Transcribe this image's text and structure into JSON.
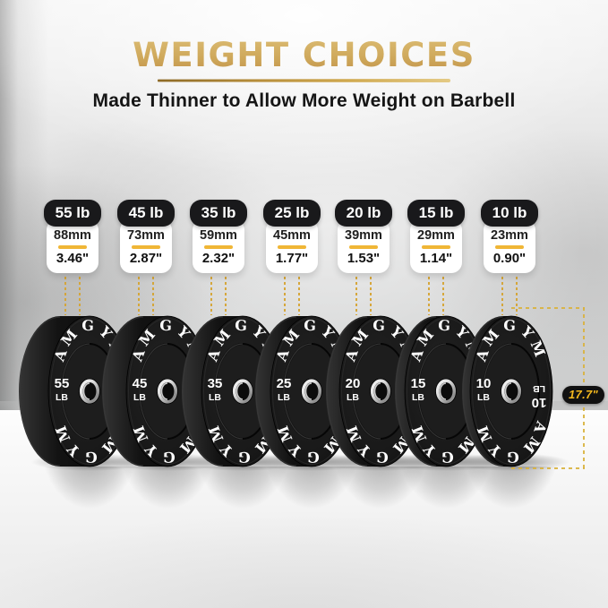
{
  "header": {
    "title": "WEIGHT CHOICES",
    "subtitle": "Made Thinner to Allow More Weight on Barbell"
  },
  "brand_text": "AMGYM",
  "diameter_annotation": {
    "label": "17.7\""
  },
  "colors": {
    "title_gold": "#cfa95c",
    "accent_gold": "#d5a433",
    "divider_gold": "#f0b636",
    "badge_text_gold": "#f5b91e",
    "card_pill_bg": "#19191b",
    "plate_black": "#171717"
  },
  "plates": [
    {
      "weight_card": "55 lb",
      "thickness_mm": "88mm",
      "thickness_in": "3.46\"",
      "face_weight": "55",
      "face_unit": "LB"
    },
    {
      "weight_card": "45 lb",
      "thickness_mm": "73mm",
      "thickness_in": "2.87\"",
      "face_weight": "45",
      "face_unit": "LB"
    },
    {
      "weight_card": "35 lb",
      "thickness_mm": "59mm",
      "thickness_in": "2.32\"",
      "face_weight": "35",
      "face_unit": "LB"
    },
    {
      "weight_card": "25 lb",
      "thickness_mm": "45mm",
      "thickness_in": "1.77\"",
      "face_weight": "25",
      "face_unit": "LB"
    },
    {
      "weight_card": "20 lb",
      "thickness_mm": "39mm",
      "thickness_in": "1.53\"",
      "face_weight": "20",
      "face_unit": "LB"
    },
    {
      "weight_card": "15 lb",
      "thickness_mm": "29mm",
      "thickness_in": "1.14\"",
      "face_weight": "15",
      "face_unit": "LB"
    },
    {
      "weight_card": "10 lb",
      "thickness_mm": "23mm",
      "thickness_in": "0.90\"",
      "face_weight": "10",
      "face_unit": "LB"
    }
  ]
}
